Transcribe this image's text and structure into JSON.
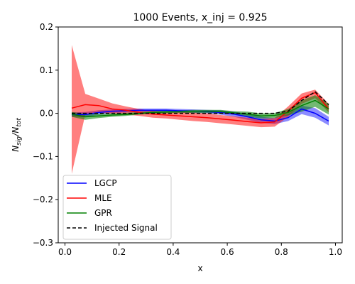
{
  "chart_data": {
    "type": "line",
    "title": "1000 Events, x_inj = 0.925",
    "xlabel": "x",
    "ylabel": "N_sig/N_tot",
    "xlim": [
      -0.025,
      1.025
    ],
    "ylim": [
      -0.3,
      0.2
    ],
    "xticks": [
      "0.0",
      "0.2",
      "0.4",
      "0.6",
      "0.8",
      "1.0"
    ],
    "yticks": [
      "−0.3",
      "−0.2",
      "−0.1",
      "0.0",
      "0.1",
      "0.2"
    ],
    "grid": false,
    "legend": "lower-left",
    "x": [
      0.025,
      0.075,
      0.125,
      0.175,
      0.225,
      0.275,
      0.325,
      0.375,
      0.425,
      0.475,
      0.525,
      0.575,
      0.625,
      0.675,
      0.725,
      0.775,
      0.825,
      0.875,
      0.925,
      0.975
    ],
    "series": [
      {
        "name": "LGCP",
        "color": "#0000ff",
        "style": "solid",
        "band_opacity": 0.45,
        "values": [
          -0.003,
          -0.003,
          0.002,
          0.005,
          0.006,
          0.007,
          0.007,
          0.007,
          0.006,
          0.005,
          0.004,
          0.002,
          -0.002,
          -0.008,
          -0.015,
          -0.018,
          -0.01,
          0.01,
          0.0,
          -0.018
        ],
        "lower": [
          -0.008,
          -0.009,
          -0.003,
          0.001,
          0.002,
          0.003,
          0.003,
          0.003,
          0.002,
          0.001,
          0.0,
          -0.003,
          -0.008,
          -0.015,
          -0.022,
          -0.025,
          -0.018,
          -0.002,
          -0.01,
          -0.028
        ],
        "upper": [
          0.002,
          0.003,
          0.007,
          0.009,
          0.01,
          0.011,
          0.011,
          0.011,
          0.01,
          0.009,
          0.008,
          0.007,
          0.004,
          -0.001,
          -0.008,
          -0.011,
          -0.002,
          0.018,
          0.012,
          -0.008
        ]
      },
      {
        "name": "MLE",
        "color": "#ff0000",
        "style": "solid",
        "band_opacity": 0.5,
        "values": [
          0.012,
          0.02,
          0.018,
          0.01,
          0.007,
          0.002,
          -0.002,
          -0.004,
          -0.006,
          -0.008,
          -0.01,
          -0.013,
          -0.016,
          -0.019,
          -0.022,
          -0.02,
          0.005,
          0.035,
          0.048,
          0.01
        ],
        "lower": [
          -0.14,
          -0.003,
          0.002,
          -0.001,
          -0.003,
          -0.006,
          -0.01,
          -0.012,
          -0.015,
          -0.018,
          -0.02,
          -0.023,
          -0.026,
          -0.029,
          -0.032,
          -0.031,
          -0.008,
          0.022,
          0.035,
          0.002
        ],
        "upper": [
          0.158,
          0.045,
          0.034,
          0.023,
          0.016,
          0.01,
          0.006,
          0.004,
          0.003,
          0.002,
          0.0,
          -0.004,
          -0.007,
          -0.01,
          -0.013,
          -0.011,
          0.016,
          0.046,
          0.055,
          0.022
        ]
      },
      {
        "name": "GPR",
        "color": "#008000",
        "style": "solid",
        "band_opacity": 0.55,
        "values": [
          -0.002,
          -0.008,
          -0.006,
          -0.004,
          -0.003,
          0.0,
          0.002,
          0.003,
          0.004,
          0.005,
          0.005,
          0.004,
          0.001,
          -0.002,
          -0.006,
          -0.005,
          0.002,
          0.018,
          0.03,
          0.01
        ],
        "lower": [
          -0.008,
          -0.015,
          -0.011,
          -0.008,
          -0.006,
          -0.003,
          -0.001,
          0.0,
          0.001,
          0.001,
          0.001,
          0.0,
          -0.003,
          -0.008,
          -0.012,
          -0.011,
          -0.005,
          0.004,
          0.015,
          -0.003
        ],
        "upper": [
          0.003,
          -0.001,
          -0.001,
          0.0,
          0.001,
          0.003,
          0.005,
          0.006,
          0.007,
          0.008,
          0.008,
          0.008,
          0.005,
          0.004,
          0.0,
          0.001,
          0.01,
          0.03,
          0.042,
          0.022
        ]
      },
      {
        "name": "Injected Signal",
        "color": "#000000",
        "style": "dashed",
        "values": [
          0.0,
          0.0,
          0.0,
          0.0,
          0.0,
          0.0,
          0.0,
          0.0,
          0.0,
          0.0,
          0.0,
          0.0,
          0.0,
          0.0,
          0.0,
          0.0,
          0.005,
          0.03,
          0.05,
          0.02
        ]
      }
    ]
  }
}
